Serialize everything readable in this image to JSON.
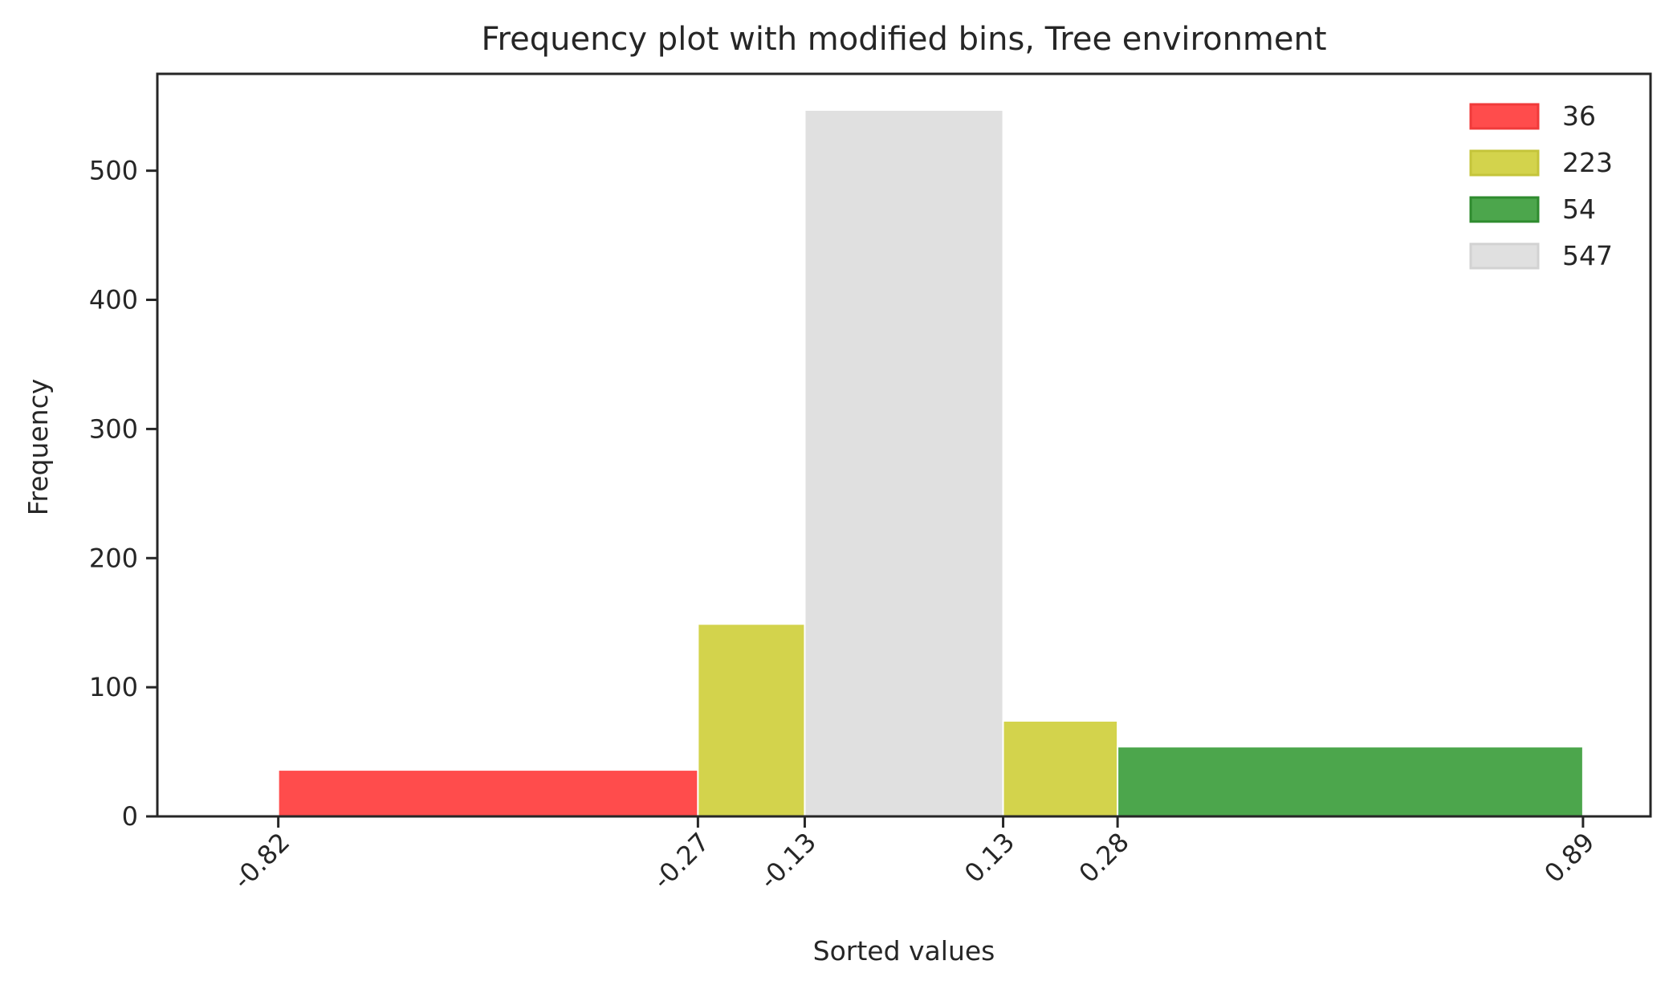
{
  "chart_data": {
    "type": "bar",
    "title": "Frequency plot with modified bins, Tree environment",
    "xlabel": "Sorted values",
    "ylabel": "Frequency",
    "xlim": [
      -0.9785,
      0.9785
    ],
    "ylim": [
      0,
      575
    ],
    "x_ticks": [
      -0.82,
      -0.27,
      -0.13,
      0.13,
      0.28,
      0.89
    ],
    "x_tick_labels": [
      "-0.82",
      "-0.27",
      "-0.13",
      "0.13",
      "0.28",
      "0.89"
    ],
    "y_ticks": [
      0,
      100,
      200,
      300,
      400,
      500
    ],
    "y_tick_labels": [
      "0",
      "100",
      "200",
      "300",
      "400",
      "500"
    ],
    "bins": [
      {
        "start": -0.82,
        "end": -0.27,
        "value": 36,
        "color": "#ff4c4c"
      },
      {
        "start": -0.27,
        "end": -0.13,
        "value": 149,
        "color": "#d3d34c"
      },
      {
        "start": -0.13,
        "end": 0.13,
        "value": 547,
        "color": "#e0e0e0"
      },
      {
        "start": 0.13,
        "end": 0.28,
        "value": 74,
        "color": "#d3d34c"
      },
      {
        "start": 0.28,
        "end": 0.89,
        "value": 54,
        "color": "#4ca64c"
      }
    ],
    "legend": {
      "placement": "top-right",
      "entries": [
        {
          "label": "36",
          "color": "#ff4c4c",
          "edge": "#f03a3a"
        },
        {
          "label": "223",
          "color": "#d3d34c",
          "edge": "#c4c43a"
        },
        {
          "label": "54",
          "color": "#4ca64c",
          "edge": "#2e8b2e"
        },
        {
          "label": "547",
          "color": "#e0e0e0",
          "edge": "#d2d2d2"
        }
      ]
    },
    "grid": false
  }
}
